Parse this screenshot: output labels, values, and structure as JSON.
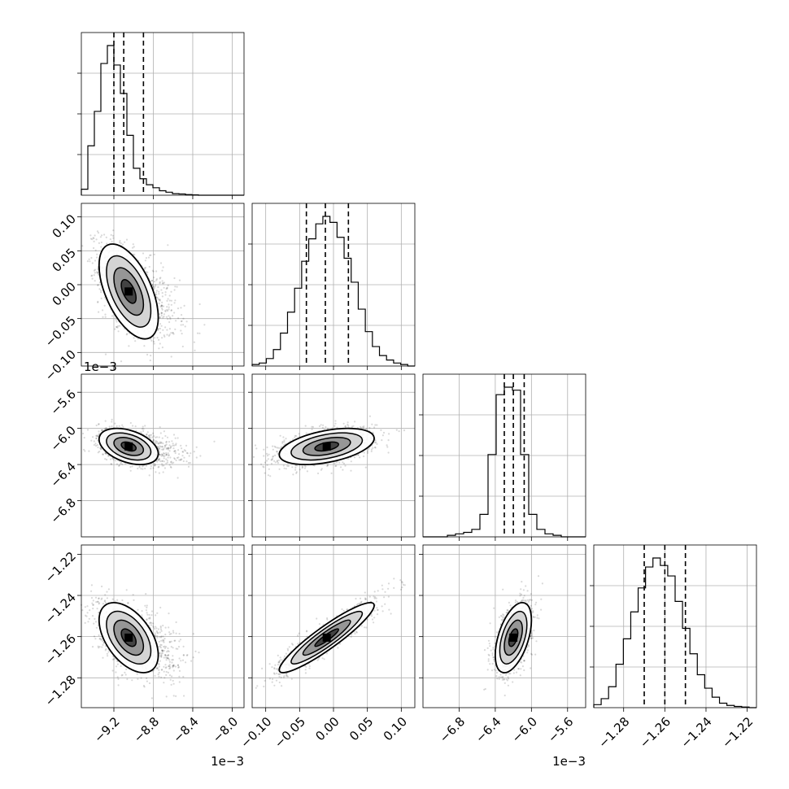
{
  "chart_data": {
    "type": "corner",
    "grid": true,
    "parameters": [
      {
        "key": "p0",
        "mean": -9.05,
        "sd": 0.15,
        "skew": true,
        "range": [
          -9.53,
          -7.88
        ],
        "ticks": [
          -9.2,
          -8.8,
          -8.4,
          -8.0
        ],
        "tick_labels": [
          "−9.2",
          "−8.8",
          "−8.4",
          "−8.0"
        ],
        "multiplier": "1e−3",
        "quantiles": [
          -9.2,
          -9.1,
          -8.9
        ]
      },
      {
        "key": "p1",
        "mean": -0.01,
        "sd": 0.035,
        "range": [
          -0.12,
          0.12
        ],
        "ticks": [
          -0.1,
          -0.05,
          0.0,
          0.05,
          0.1
        ],
        "tick_labels": [
          "−0.10",
          "−0.05",
          "0.00",
          "0.05",
          "0.10"
        ],
        "multiplier": "",
        "quantiles": [
          -0.04,
          -0.012,
          0.022
        ]
      },
      {
        "key": "p2",
        "mean": -6.2,
        "sd": 0.1,
        "range": [
          -7.2,
          -5.4
        ],
        "ticks": [
          -6.8,
          -6.4,
          -6.0,
          -5.6
        ],
        "tick_labels": [
          "−6.8",
          "−6.4",
          "−6.0",
          "−5.6"
        ],
        "multiplier": "1e−3",
        "quantiles": [
          -6.3,
          -6.2,
          -6.08
        ]
      },
      {
        "key": "p3",
        "mean": -1.2605,
        "sd": 0.0085,
        "range": [
          -1.2945,
          -1.2155
        ],
        "ticks": [
          -1.28,
          -1.26,
          -1.24,
          -1.22
        ],
        "tick_labels": [
          "−1.28",
          "−1.26",
          "−1.24",
          "−1.22"
        ],
        "multiplier": "",
        "quantiles": [
          -1.27,
          -1.26,
          -1.25
        ]
      }
    ],
    "histograms": [
      [
        0.04,
        0.33,
        0.56,
        0.88,
        1.0,
        0.87,
        0.68,
        0.4,
        0.18,
        0.11,
        0.07,
        0.05,
        0.03,
        0.02,
        0.01,
        0.008,
        0.004,
        0.002,
        0,
        0,
        0,
        0,
        0,
        0,
        0
      ],
      [
        0.01,
        0.02,
        0.05,
        0.11,
        0.22,
        0.36,
        0.52,
        0.7,
        0.85,
        0.95,
        1.0,
        0.96,
        0.86,
        0.72,
        0.56,
        0.38,
        0.23,
        0.13,
        0.07,
        0.04,
        0.02,
        0.01,
        0
      ],
      [
        0,
        0,
        0,
        0.01,
        0.02,
        0.03,
        0.05,
        0.15,
        0.55,
        0.95,
        1.0,
        0.98,
        0.55,
        0.15,
        0.05,
        0.02,
        0.01,
        0,
        0,
        0
      ],
      [
        0.02,
        0.06,
        0.14,
        0.29,
        0.46,
        0.64,
        0.8,
        0.94,
        1.0,
        0.95,
        0.88,
        0.71,
        0.53,
        0.36,
        0.22,
        0.13,
        0.07,
        0.03,
        0.015,
        0.008,
        0.004,
        0
      ]
    ],
    "pairs": [
      {
        "x": 0,
        "y": 1,
        "corr": -0.55
      },
      {
        "x": 0,
        "y": 2,
        "corr": -0.4
      },
      {
        "x": 1,
        "y": 2,
        "corr": 0.45
      },
      {
        "x": 0,
        "y": 3,
        "corr": -0.5
      },
      {
        "x": 1,
        "y": 3,
        "corr": 0.92
      },
      {
        "x": 2,
        "y": 3,
        "corr": 0.5
      }
    ]
  }
}
